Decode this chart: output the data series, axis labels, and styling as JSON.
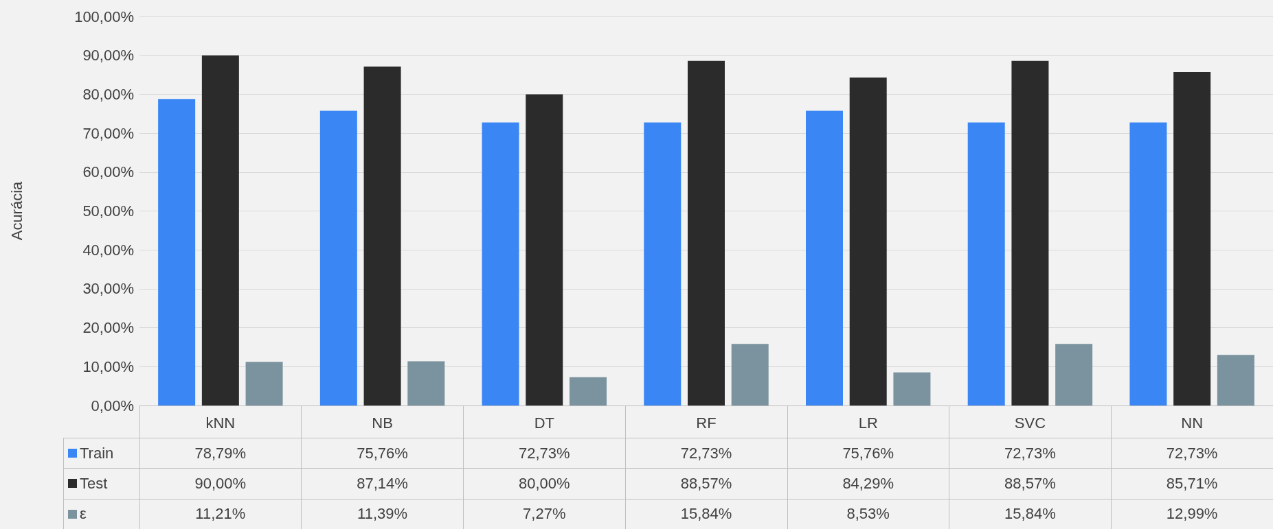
{
  "chart_data": {
    "type": "bar",
    "ylabel": "Acurácia",
    "categories": [
      "kNN",
      "NB",
      "DT",
      "RF",
      "LR",
      "SVC",
      "NN"
    ],
    "series": [
      {
        "name": "Train",
        "color": "#3a86f5",
        "values": [
          78.79,
          75.76,
          72.73,
          72.73,
          75.76,
          72.73,
          72.73
        ],
        "value_labels": [
          "78,79%",
          "75,76%",
          "72,73%",
          "72,73%",
          "75,76%",
          "72,73%",
          "72,73%"
        ]
      },
      {
        "name": "Test",
        "color": "#2b2b2b",
        "values": [
          90.0,
          87.14,
          80.0,
          88.57,
          84.29,
          88.57,
          85.71
        ],
        "value_labels": [
          "90,00%",
          "87,14%",
          "80,00%",
          "88,57%",
          "84,29%",
          "88,57%",
          "85,71%"
        ]
      },
      {
        "name": "ε",
        "color": "#7a939e",
        "values": [
          11.21,
          11.39,
          7.27,
          15.84,
          8.53,
          15.84,
          12.99
        ],
        "value_labels": [
          "11,21%",
          "11,39%",
          "7,27%",
          "15,84%",
          "8,53%",
          "15,84%",
          "12,99%"
        ]
      }
    ],
    "ylim": [
      0,
      100
    ],
    "yticks": [
      {
        "value": 0,
        "label": "0,00%"
      },
      {
        "value": 10,
        "label": "10,00%"
      },
      {
        "value": 20,
        "label": "20,00%"
      },
      {
        "value": 30,
        "label": "30,00%"
      },
      {
        "value": 40,
        "label": "40,00%"
      },
      {
        "value": 50,
        "label": "50,00%"
      },
      {
        "value": 60,
        "label": "60,00%"
      },
      {
        "value": 70,
        "label": "70,00%"
      },
      {
        "value": 80,
        "label": "80,00%"
      },
      {
        "value": 90,
        "label": "90,00%"
      },
      {
        "value": 100,
        "label": "100,00%"
      }
    ],
    "grid": "y",
    "legend": "bottom left"
  }
}
